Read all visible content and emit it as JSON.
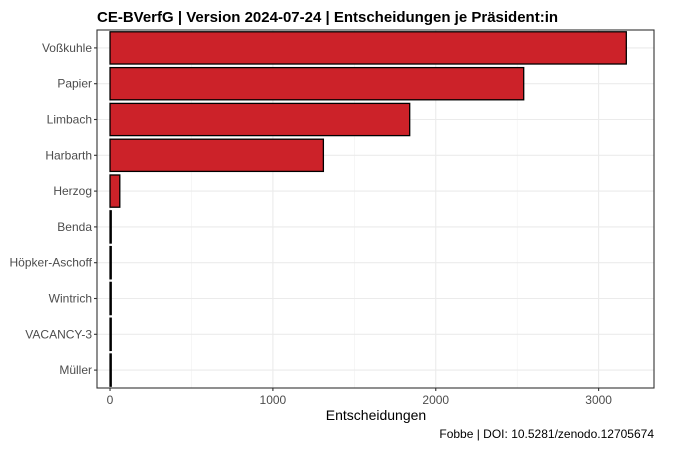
{
  "chart_data": {
    "type": "bar",
    "orientation": "horizontal",
    "title": "CE-BVerfG | Version 2024-07-24 | Entscheidungen je Präsident:in",
    "xlabel": "Entscheidungen",
    "ylabel": "",
    "caption": "Fobbe | DOI: 10.5281/zenodo.12705674",
    "categories": [
      "Voßkuhle",
      "Papier",
      "Limbach",
      "Harbarth",
      "Herzog",
      "Benda",
      "Höpker-Aschoff",
      "Wintrich",
      "VACANCY-3",
      "Müller"
    ],
    "values": [
      3170,
      2540,
      1840,
      1310,
      60,
      5,
      4,
      3,
      2,
      1
    ],
    "xlim": [
      -80,
      3340
    ],
    "xticks": [
      0,
      1000,
      2000,
      3000
    ],
    "grid": true,
    "legend": "none",
    "bar_color": "#cc2229",
    "bar_outline": "#000000"
  }
}
